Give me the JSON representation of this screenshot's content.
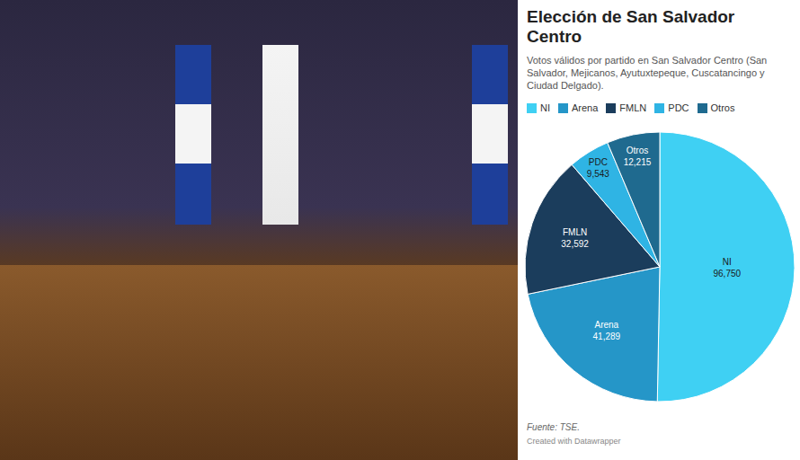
{
  "chart_data": {
    "type": "pie",
    "title": "Elección de San Salvador Centro",
    "subtitle": "Votos válidos por partido en San Salvador Centro (San Salvador, Mejicanos, Ayutuxtepeque, Cuscatancingo y Ciudad Delgado).",
    "categories": [
      "NI",
      "Arena",
      "FMLN",
      "PDC",
      "Otros"
    ],
    "values": [
      96750,
      41289,
      32592,
      9543,
      12215
    ],
    "value_labels": [
      "96,750",
      "41,289",
      "32,592",
      "9,543",
      "12,215"
    ],
    "colors": [
      "#3fd0f3",
      "#2596c8",
      "#1b3d5c",
      "#2fb4e4",
      "#1f6a8f"
    ],
    "data_labels": true,
    "legend": "top",
    "annotations": [
      "Fuente: TSE.",
      "Created with Datawrapper"
    ]
  }
}
